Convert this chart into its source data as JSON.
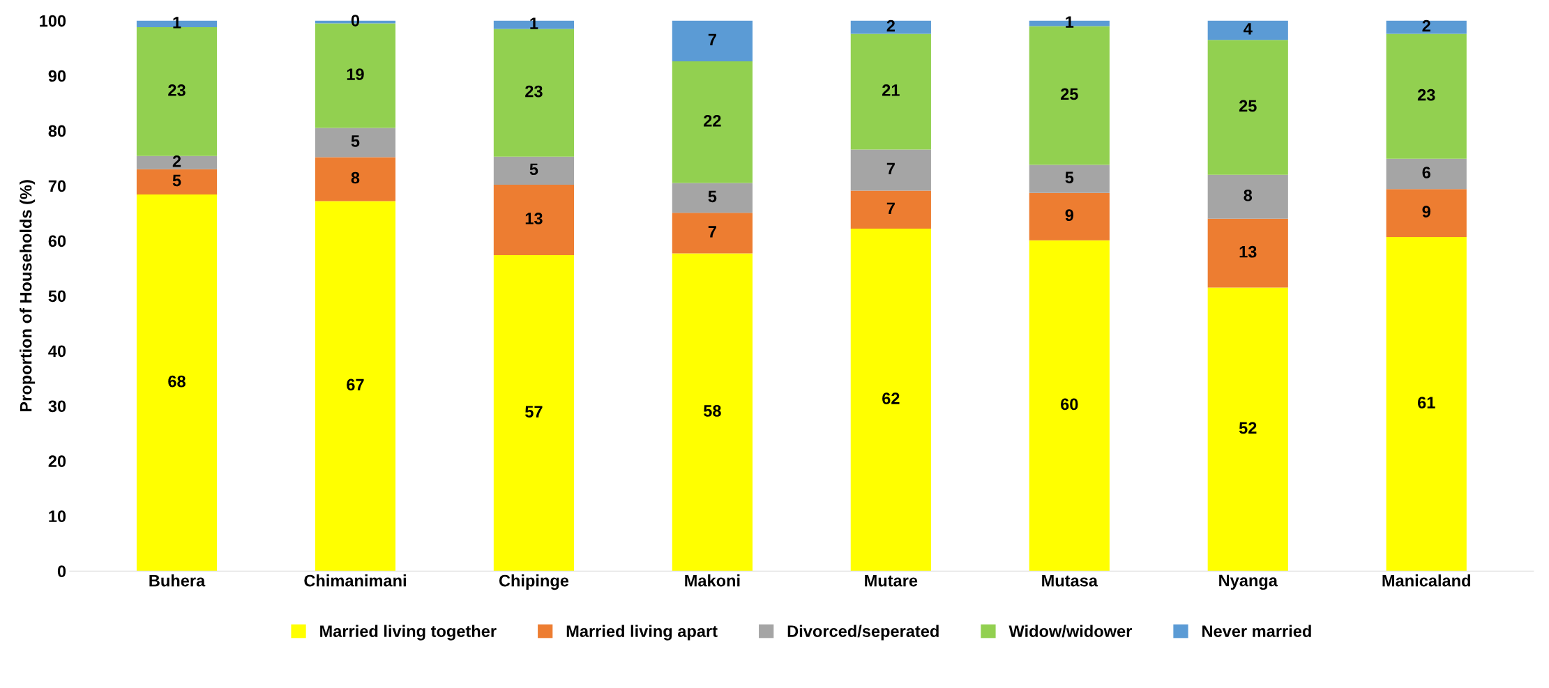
{
  "chart_data": {
    "type": "bar",
    "stacked": true,
    "ylabel": "Proportion of Households (%)",
    "categories": [
      "Buhera",
      "Chimanimani",
      "Chipinge",
      "Makoni",
      "Mutare",
      "Mutasa",
      "Nyanga",
      "Manicaland"
    ],
    "series": [
      {
        "name": "Married living together",
        "color": "#ffff00",
        "values": [
          68.4,
          67.2,
          57.4,
          57.7,
          62.2,
          60.1,
          51.5,
          60.7
        ],
        "value_labels": [
          "68",
          "67",
          "57",
          "58",
          "62",
          "60",
          "52",
          "61"
        ]
      },
      {
        "name": "Married living apart",
        "color": "#ed7d31",
        "values": [
          4.6,
          8.0,
          12.8,
          7.4,
          6.9,
          8.6,
          12.5,
          8.7
        ],
        "value_labels": [
          "5",
          "8",
          "13",
          "7",
          "7",
          "9",
          "13",
          "9"
        ]
      },
      {
        "name": "Divorced/seperated",
        "color": "#a5a5a5",
        "values": [
          2.4,
          5.3,
          5.1,
          5.4,
          7.5,
          5.1,
          8.0,
          5.5
        ],
        "value_labels": [
          "2",
          "5",
          "5",
          "5",
          "7",
          "5",
          "8",
          "6"
        ]
      },
      {
        "name": "Widow/widower",
        "color": "#92d050",
        "values": [
          23.4,
          19.0,
          23.2,
          22.1,
          21.0,
          25.2,
          24.5,
          22.7
        ],
        "value_labels": [
          "23",
          "19",
          "23",
          "22",
          "21",
          "25",
          "25",
          "23"
        ]
      },
      {
        "name": "Never married",
        "color": "#5b9bd5",
        "values": [
          1.2,
          0.5,
          1.5,
          7.4,
          2.4,
          1.0,
          3.5,
          2.4
        ],
        "value_labels": [
          "1",
          "0",
          "1",
          "7",
          "2",
          "1",
          "4",
          "2"
        ]
      }
    ],
    "ylim": [
      0,
      100
    ],
    "yticks": [
      0,
      10,
      20,
      30,
      40,
      50,
      60,
      70,
      80,
      90,
      100
    ],
    "grid": false,
    "legend": "bottom"
  }
}
